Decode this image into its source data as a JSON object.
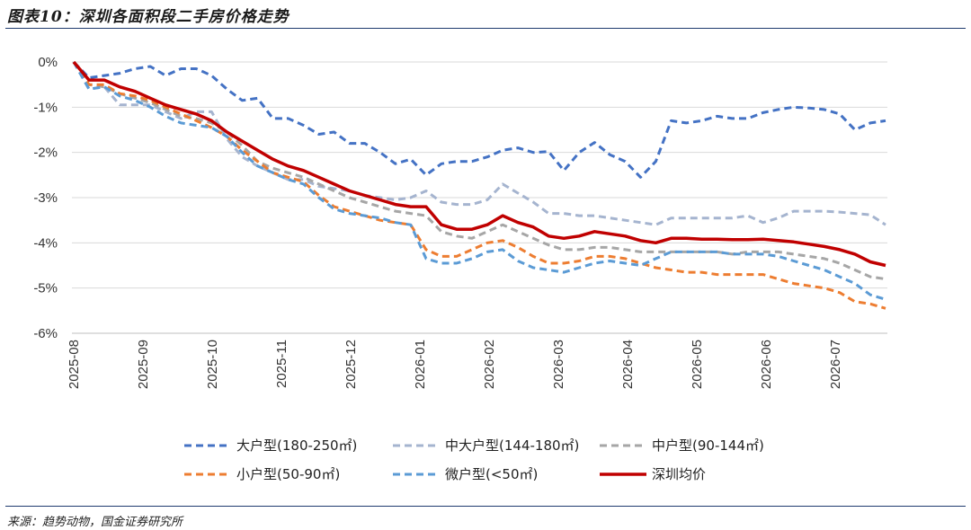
{
  "header": {
    "title": "图表10：深圳各面积段二手房价格走势"
  },
  "footer": {
    "source": "来源：趋势动物，国金证券研究所"
  },
  "chart_data": {
    "type": "line",
    "title": "图表10：深圳各面积段二手房价格走势",
    "xlabel": "",
    "ylabel": "",
    "ylim": [
      -6,
      0
    ],
    "ytick_labels": [
      "0%",
      "-1%",
      "-2%",
      "-3%",
      "-4%",
      "-5%",
      "-6%"
    ],
    "yticks": [
      0,
      -1,
      -2,
      -3,
      -4,
      -5,
      -6
    ],
    "xtick_labels": [
      "2025-08",
      "2025-09",
      "2025-10",
      "2025-11",
      "2025-12",
      "2026-01",
      "2026-02",
      "2026-03",
      "2026-04",
      "2026-05",
      "2026-06",
      "2026-07"
    ],
    "grid": "horizontal",
    "legend_position": "bottom",
    "series": [
      {
        "name": "大户型(180-250㎡)",
        "color": "#4472c4",
        "style": "dashed",
        "y": [
          0,
          -0.35,
          -0.3,
          -0.25,
          -0.15,
          -0.1,
          -0.3,
          -0.15,
          -0.15,
          -0.3,
          -0.6,
          -0.85,
          -0.8,
          -1.25,
          -1.25,
          -1.4,
          -1.6,
          -1.55,
          -1.8,
          -1.8,
          -2.0,
          -2.25,
          -2.15,
          -2.5,
          -2.25,
          -2.2,
          -2.2,
          -2.1,
          -1.95,
          -1.9,
          -2.0,
          -1.98,
          -2.4,
          -2.0,
          -1.78,
          -2.05,
          -2.2,
          -2.55,
          -2.2,
          -1.3,
          -1.35,
          -1.3,
          -1.2,
          -1.25,
          -1.25,
          -1.12,
          -1.05,
          -1.0,
          -1.02,
          -1.05,
          -1.15,
          -1.5,
          -1.35,
          -1.3
        ]
      },
      {
        "name": "中大户型(144-180㎡)",
        "color": "#a5b4cf",
        "style": "dashed",
        "y": [
          0,
          -0.6,
          -0.55,
          -0.95,
          -0.95,
          -0.95,
          -1.1,
          -1.25,
          -1.1,
          -1.1,
          -1.7,
          -2.1,
          -2.3,
          -2.45,
          -2.6,
          -2.6,
          -2.75,
          -2.8,
          -2.85,
          -2.95,
          -3.0,
          -3.05,
          -3.0,
          -2.85,
          -3.1,
          -3.15,
          -3.15,
          -3.05,
          -2.7,
          -2.9,
          -3.1,
          -3.35,
          -3.35,
          -3.4,
          -3.4,
          -3.45,
          -3.5,
          -3.55,
          -3.6,
          -3.45,
          -3.45,
          -3.45,
          -3.45,
          -3.45,
          -3.4,
          -3.55,
          -3.45,
          -3.3,
          -3.3,
          -3.3,
          -3.32,
          -3.35,
          -3.38,
          -3.6
        ]
      },
      {
        "name": "中户型(90-144㎡)",
        "color": "#a6a6a6",
        "style": "dashed",
        "y": [
          0,
          -0.5,
          -0.55,
          -0.7,
          -0.8,
          -0.9,
          -1.05,
          -1.2,
          -1.25,
          -1.35,
          -1.55,
          -1.85,
          -2.2,
          -2.35,
          -2.45,
          -2.55,
          -2.7,
          -2.85,
          -3.0,
          -3.1,
          -3.2,
          -3.3,
          -3.35,
          -3.4,
          -3.75,
          -3.85,
          -3.9,
          -3.75,
          -3.6,
          -3.75,
          -3.9,
          -4.05,
          -4.15,
          -4.15,
          -4.1,
          -4.1,
          -4.15,
          -4.2,
          -4.2,
          -4.2,
          -4.2,
          -4.2,
          -4.2,
          -4.25,
          -4.2,
          -4.2,
          -4.2,
          -4.25,
          -4.3,
          -4.35,
          -4.45,
          -4.6,
          -4.75,
          -4.8
        ]
      },
      {
        "name": "小户型(50-90㎡)",
        "color": "#ed7d31",
        "style": "dashed",
        "y": [
          0,
          -0.5,
          -0.5,
          -0.7,
          -0.75,
          -0.85,
          -1.0,
          -1.15,
          -1.3,
          -1.45,
          -1.65,
          -1.95,
          -2.2,
          -2.45,
          -2.55,
          -2.65,
          -2.95,
          -3.2,
          -3.3,
          -3.4,
          -3.5,
          -3.55,
          -3.6,
          -4.15,
          -4.3,
          -4.3,
          -4.15,
          -4.0,
          -3.95,
          -4.1,
          -4.3,
          -4.45,
          -4.45,
          -4.4,
          -4.3,
          -4.3,
          -4.35,
          -4.45,
          -4.55,
          -4.6,
          -4.65,
          -4.65,
          -4.7,
          -4.7,
          -4.7,
          -4.7,
          -4.8,
          -4.9,
          -4.95,
          -5.0,
          -5.1,
          -5.3,
          -5.35,
          -5.45
        ]
      },
      {
        "name": "微户型(<50㎡)",
        "color": "#5b9bd5",
        "style": "dashed",
        "y": [
          0,
          -0.6,
          -0.55,
          -0.75,
          -0.85,
          -1.0,
          -1.2,
          -1.35,
          -1.4,
          -1.45,
          -1.65,
          -2.0,
          -2.3,
          -2.45,
          -2.6,
          -2.7,
          -3.0,
          -3.25,
          -3.35,
          -3.4,
          -3.45,
          -3.55,
          -3.6,
          -4.35,
          -4.45,
          -4.45,
          -4.35,
          -4.2,
          -4.15,
          -4.4,
          -4.55,
          -4.6,
          -4.65,
          -4.55,
          -4.45,
          -4.4,
          -4.45,
          -4.5,
          -4.35,
          -4.2,
          -4.2,
          -4.2,
          -4.2,
          -4.25,
          -4.25,
          -4.25,
          -4.3,
          -4.4,
          -4.5,
          -4.6,
          -4.75,
          -4.9,
          -5.15,
          -5.25
        ]
      },
      {
        "name": "深圳均价",
        "color": "#c00000",
        "style": "solid",
        "y": [
          0,
          -0.4,
          -0.4,
          -0.55,
          -0.65,
          -0.8,
          -0.95,
          -1.05,
          -1.15,
          -1.3,
          -1.55,
          -1.75,
          -1.95,
          -2.15,
          -2.3,
          -2.4,
          -2.55,
          -2.7,
          -2.85,
          -2.95,
          -3.05,
          -3.15,
          -3.2,
          -3.2,
          -3.6,
          -3.7,
          -3.7,
          -3.6,
          -3.4,
          -3.55,
          -3.65,
          -3.85,
          -3.9,
          -3.85,
          -3.75,
          -3.8,
          -3.85,
          -3.95,
          -4.0,
          -3.9,
          -3.9,
          -3.92,
          -3.92,
          -3.93,
          -3.93,
          -3.92,
          -3.95,
          -3.98,
          -4.03,
          -4.08,
          -4.15,
          -4.25,
          -4.42,
          -4.5
        ]
      }
    ]
  }
}
